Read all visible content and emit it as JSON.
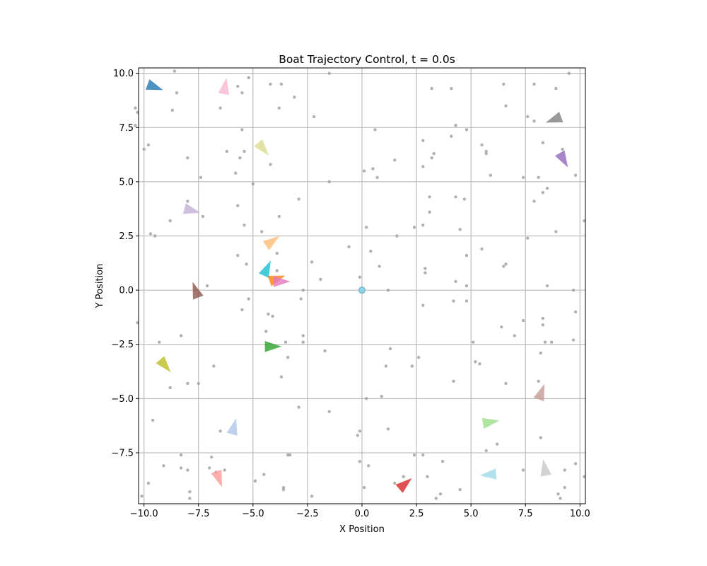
{
  "chart_data": {
    "type": "scatter",
    "title": "Boat Trajectory Control, t = 0.0s",
    "xlabel": "X Position",
    "ylabel": "Y Position",
    "xlim": [
      -10.25,
      10.25
    ],
    "ylim": [
      -9.85,
      10.25
    ],
    "xticks": [
      -10.0,
      -7.5,
      -5.0,
      -2.5,
      0.0,
      2.5,
      5.0,
      7.5,
      10.0
    ],
    "yticks": [
      10.0,
      7.5,
      5.0,
      2.5,
      0.0,
      -2.5,
      -5.0,
      -7.5
    ],
    "xtick_labels": [
      "−10.0",
      "−7.5",
      "−5.0",
      "−2.5",
      "0.0",
      "2.5",
      "5.0",
      "7.5",
      "10.0"
    ],
    "ytick_labels": [
      "10.0",
      "7.5",
      "5.0",
      "2.5",
      "0.0",
      "−2.5",
      "−5.0",
      "−7.5"
    ],
    "grid": true,
    "target": {
      "x": 0.0,
      "y": 0.0,
      "color": "#8dd3e6"
    },
    "obstacle_color": "#9e9e9e",
    "obstacles": [
      [
        -10.4,
        8.4
      ],
      [
        -10.3,
        8.2
      ],
      [
        -10.4,
        7.6
      ],
      [
        -10.0,
        6.5
      ],
      [
        -9.8,
        6.7
      ],
      [
        -8.6,
        10.1
      ],
      [
        -8.5,
        9.1
      ],
      [
        -8.7,
        8.3
      ],
      [
        -9.7,
        2.6
      ],
      [
        -9.5,
        2.5
      ],
      [
        -8.0,
        6.1
      ],
      [
        -7.4,
        5.2
      ],
      [
        -8.0,
        4.1
      ],
      [
        -8.8,
        3.2
      ],
      [
        -7.3,
        3.4
      ],
      [
        -5.2,
        9.8
      ],
      [
        -5.7,
        9.4
      ],
      [
        -5.5,
        9.1
      ],
      [
        -6.5,
        8.4
      ],
      [
        -6.2,
        6.4
      ],
      [
        -5.6,
        6.1
      ],
      [
        -5.4,
        6.4
      ],
      [
        -5.8,
        5.4
      ],
      [
        -5.5,
        7.4
      ],
      [
        -4.2,
        9.5
      ],
      [
        -3.7,
        9.5
      ],
      [
        -3.8,
        8.4
      ],
      [
        -3.1,
        8.9
      ],
      [
        -2.2,
        8.0
      ],
      [
        -1.5,
        10.0
      ],
      [
        -4.2,
        5.8
      ],
      [
        -5.0,
        4.9
      ],
      [
        -1.5,
        5.0
      ],
      [
        -5.7,
        3.9
      ],
      [
        -5.4,
        3.0
      ],
      [
        -3.8,
        3.4
      ],
      [
        -2.9,
        4.2
      ],
      [
        -4.6,
        2.7
      ],
      [
        -3.9,
        1.7
      ],
      [
        -5.7,
        1.6
      ],
      [
        -5.3,
        1.2
      ],
      [
        -2.3,
        1.3
      ],
      [
        -1.9,
        0.5
      ],
      [
        -3.9,
        0.9
      ],
      [
        -7.1,
        0.2
      ],
      [
        -5.2,
        -0.4
      ],
      [
        -2.8,
        -0.4
      ],
      [
        -2.7,
        0.0
      ],
      [
        -5.5,
        -0.9
      ],
      [
        -4.3,
        -1.1
      ],
      [
        -4.1,
        -1.2
      ],
      [
        -4.4,
        -1.9
      ],
      [
        -3.5,
        -2.4
      ],
      [
        -2.7,
        -2.1
      ],
      [
        -2.7,
        -2.4
      ],
      [
        -3.4,
        -3.1
      ],
      [
        -1.7,
        -2.8
      ],
      [
        -3.7,
        -4.0
      ],
      [
        -10.3,
        -1.5
      ],
      [
        -9.3,
        -2.4
      ],
      [
        -8.3,
        -2.1
      ],
      [
        -6.8,
        -3.5
      ],
      [
        -7.5,
        -4.3
      ],
      [
        -8.0,
        -4.3
      ],
      [
        -8.8,
        -4.5
      ],
      [
        -9.6,
        -6.0
      ],
      [
        -6.5,
        -6.5
      ],
      [
        -2.9,
        -5.4
      ],
      [
        -1.5,
        -5.6
      ],
      [
        -3.4,
        -7.6
      ],
      [
        -3.3,
        -7.6
      ],
      [
        -8.3,
        -7.6
      ],
      [
        -9.1,
        -8.1
      ],
      [
        -8.3,
        -8.2
      ],
      [
        -8.0,
        -8.3
      ],
      [
        -6.9,
        -7.7
      ],
      [
        -7.0,
        -8.2
      ],
      [
        -6.7,
        -8.4
      ],
      [
        -6.3,
        -8.3
      ],
      [
        -9.8,
        -8.9
      ],
      [
        -7.9,
        -9.3
      ],
      [
        -7.9,
        -9.6
      ],
      [
        -10.1,
        -9.5
      ],
      [
        -4.9,
        -8.8
      ],
      [
        -4.5,
        -8.5
      ],
      [
        -3.6,
        -9.1
      ],
      [
        -3.6,
        -9.2
      ],
      [
        -2.3,
        -9.5
      ],
      [
        0.1,
        5.5
      ],
      [
        0.5,
        5.6
      ],
      [
        0.7,
        5.2
      ],
      [
        0.6,
        7.4
      ],
      [
        1.5,
        6.0
      ],
      [
        0.2,
        2.9
      ],
      [
        1.6,
        2.5
      ],
      [
        -0.6,
        2.0
      ],
      [
        0.4,
        1.8
      ],
      [
        0.8,
        1.1
      ],
      [
        -0.1,
        0.6
      ],
      [
        1.2,
        0.0
      ],
      [
        3.2,
        9.3
      ],
      [
        4.1,
        9.3
      ],
      [
        6.5,
        9.5
      ],
      [
        7.9,
        9.5
      ],
      [
        8.9,
        9.3
      ],
      [
        9.5,
        10.0
      ],
      [
        6.6,
        8.5
      ],
      [
        7.6,
        8.0
      ],
      [
        7.9,
        7.8
      ],
      [
        4.3,
        7.6
      ],
      [
        4.8,
        7.4
      ],
      [
        4.1,
        7.1
      ],
      [
        2.8,
        6.9
      ],
      [
        5.5,
        6.7
      ],
      [
        5.7,
        6.4
      ],
      [
        5.7,
        6.3
      ],
      [
        3.3,
        6.3
      ],
      [
        3.2,
        6.1
      ],
      [
        2.8,
        5.7
      ],
      [
        5.9,
        5.3
      ],
      [
        7.4,
        5.2
      ],
      [
        8.1,
        5.2
      ],
      [
        8.5,
        4.7
      ],
      [
        8.3,
        4.5
      ],
      [
        7.9,
        4.1
      ],
      [
        9.2,
        6.5
      ],
      [
        9.8,
        5.3
      ],
      [
        8.3,
        6.8
      ],
      [
        3.1,
        4.3
      ],
      [
        4.3,
        4.3
      ],
      [
        4.7,
        4.2
      ],
      [
        3.1,
        3.6
      ],
      [
        2.4,
        2.9
      ],
      [
        2.8,
        3.0
      ],
      [
        4.5,
        2.8
      ],
      [
        7.6,
        2.4
      ],
      [
        8.9,
        2.7
      ],
      [
        10.2,
        3.2
      ],
      [
        4.8,
        1.6
      ],
      [
        5.5,
        1.9
      ],
      [
        6.5,
        1.1
      ],
      [
        6.6,
        1.2
      ],
      [
        2.9,
        1.0
      ],
      [
        2.9,
        0.8
      ],
      [
        4.3,
        0.4
      ],
      [
        4.8,
        0.2
      ],
      [
        8.5,
        0.2
      ],
      [
        9.7,
        0.0
      ],
      [
        2.8,
        -0.7
      ],
      [
        4.2,
        -0.5
      ],
      [
        4.8,
        -0.5
      ],
      [
        9.8,
        -1.0
      ],
      [
        7.4,
        -1.4
      ],
      [
        8.3,
        -1.3
      ],
      [
        8.3,
        -1.6
      ],
      [
        6.4,
        -1.7
      ],
      [
        7.0,
        -2.1
      ],
      [
        8.4,
        -2.4
      ],
      [
        8.7,
        -2.4
      ],
      [
        9.7,
        -2.3
      ],
      [
        8.2,
        -2.9
      ],
      [
        5.1,
        -2.4
      ],
      [
        5.2,
        -3.3
      ],
      [
        5.4,
        -3.4
      ],
      [
        2.6,
        -3.1
      ],
      [
        2.3,
        -3.5
      ],
      [
        1.3,
        -2.7
      ],
      [
        1.1,
        -3.5
      ],
      [
        4.2,
        -4.2
      ],
      [
        6.6,
        -4.3
      ],
      [
        8.1,
        -4.2
      ],
      [
        0.2,
        -5.0
      ],
      [
        0.9,
        -4.9
      ],
      [
        1.2,
        -6.4
      ],
      [
        8.2,
        -6.8
      ],
      [
        6.2,
        -7.1
      ],
      [
        5.7,
        -7.4
      ],
      [
        2.4,
        -7.6
      ],
      [
        2.8,
        -7.6
      ],
      [
        3.7,
        -7.9
      ],
      [
        -0.1,
        -6.5
      ],
      [
        -0.2,
        -6.7
      ],
      [
        -0.1,
        -7.9
      ],
      [
        0.3,
        -8.1
      ],
      [
        0.1,
        -9.1
      ],
      [
        1.9,
        -8.6
      ],
      [
        1.5,
        -8.9
      ],
      [
        3.0,
        -8.6
      ],
      [
        3.4,
        -9.6
      ],
      [
        3.6,
        -9.4
      ],
      [
        4.5,
        -9.2
      ],
      [
        7.4,
        -8.3
      ],
      [
        9.3,
        -8.3
      ],
      [
        9.8,
        -8.0
      ],
      [
        10.2,
        -8.6
      ],
      [
        9.3,
        -9.1
      ],
      [
        9.0,
        -9.4
      ],
      [
        9.1,
        -9.6
      ]
    ],
    "boats": [
      {
        "x": -9.6,
        "y": 9.4,
        "heading": -20,
        "color": "#1f77b4"
      },
      {
        "x": -6.3,
        "y": 9.3,
        "heading": 80,
        "color": "#f7b6d2"
      },
      {
        "x": 8.9,
        "y": 7.9,
        "heading": 200,
        "color": "#7f7f7f"
      },
      {
        "x": -4.6,
        "y": 6.6,
        "heading": -50,
        "color": "#dbdb8d"
      },
      {
        "x": 9.2,
        "y": 6.1,
        "heading": -60,
        "color": "#9467bd"
      },
      {
        "x": -7.9,
        "y": 3.7,
        "heading": -15,
        "color": "#c5b0d5"
      },
      {
        "x": -4.2,
        "y": 2.2,
        "heading": 35,
        "color": "#ffbb78"
      },
      {
        "x": -4.4,
        "y": 0.9,
        "heading": 65,
        "color": "#17becf"
      },
      {
        "x": -4.0,
        "y": 0.5,
        "heading": 20,
        "color": "#ff7f0e"
      },
      {
        "x": -3.8,
        "y": 0.4,
        "heading": 0,
        "color": "#e377c2"
      },
      {
        "x": -7.6,
        "y": -0.1,
        "heading": 110,
        "color": "#8c564b"
      },
      {
        "x": -4.2,
        "y": -2.6,
        "heading": 0,
        "color": "#2ca02c"
      },
      {
        "x": -9.1,
        "y": -3.4,
        "heading": -50,
        "color": "#bcbd22"
      },
      {
        "x": 8.2,
        "y": -4.8,
        "heading": 70,
        "color": "#c49c94"
      },
      {
        "x": 5.8,
        "y": -6.1,
        "heading": 10,
        "color": "#98df8a"
      },
      {
        "x": -5.9,
        "y": -6.4,
        "heading": 75,
        "color": "#aec7e8"
      },
      {
        "x": -6.6,
        "y": -8.6,
        "heading": -70,
        "color": "#ff9896"
      },
      {
        "x": 5.9,
        "y": -8.5,
        "heading": 185,
        "color": "#9edae5"
      },
      {
        "x": 8.4,
        "y": -8.3,
        "heading": 100,
        "color": "#c7c7c7"
      },
      {
        "x": 1.9,
        "y": -9.0,
        "heading": 40,
        "color": "#d62728"
      }
    ]
  }
}
